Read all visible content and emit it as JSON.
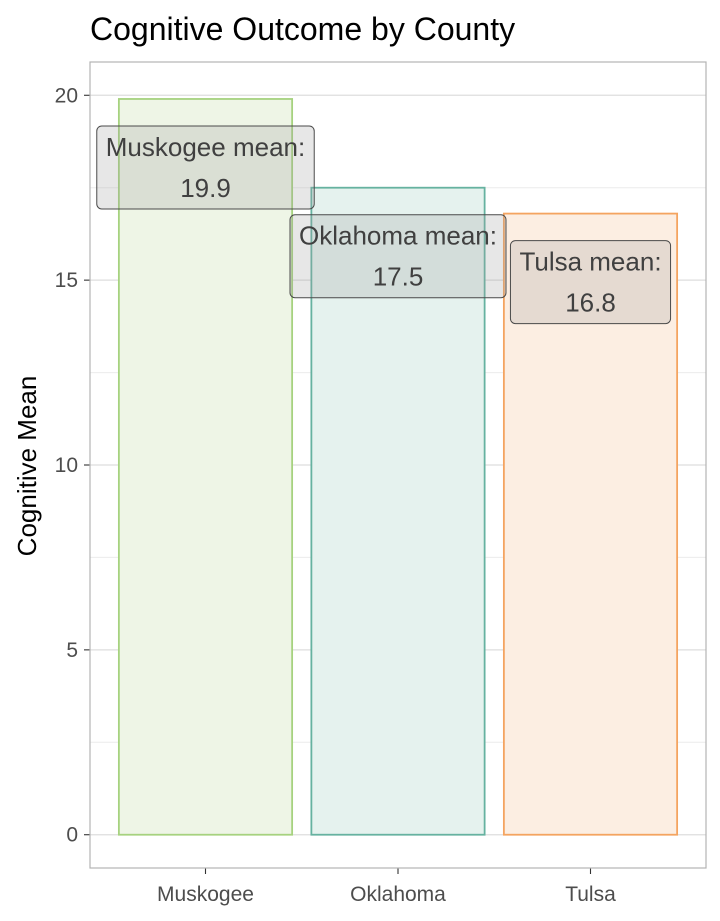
{
  "chart_data": {
    "type": "bar",
    "title": "Cognitive Outcome by County",
    "xlabel": "",
    "ylabel": "Cognitive Mean",
    "categories": [
      "Muskogee",
      "Oklahoma",
      "Tulsa"
    ],
    "values": [
      19.9,
      17.5,
      16.8
    ],
    "colors": [
      "#a6d27f",
      "#66b2a0",
      "#f4a460"
    ],
    "fill_colors": [
      "#eef5e6",
      "#e5f2ee",
      "#fceee2"
    ],
    "annotations": [
      {
        "line1": "Muskogee mean:",
        "line2": "19.9"
      },
      {
        "line1": "Oklahoma mean:",
        "line2": "17.5"
      },
      {
        "line1": "Tulsa mean:",
        "line2": "16.8"
      }
    ],
    "ylim": [
      -0.9,
      20.9
    ],
    "yticks": [
      "0",
      "5",
      "10",
      "15",
      "20"
    ],
    "grid": true
  }
}
